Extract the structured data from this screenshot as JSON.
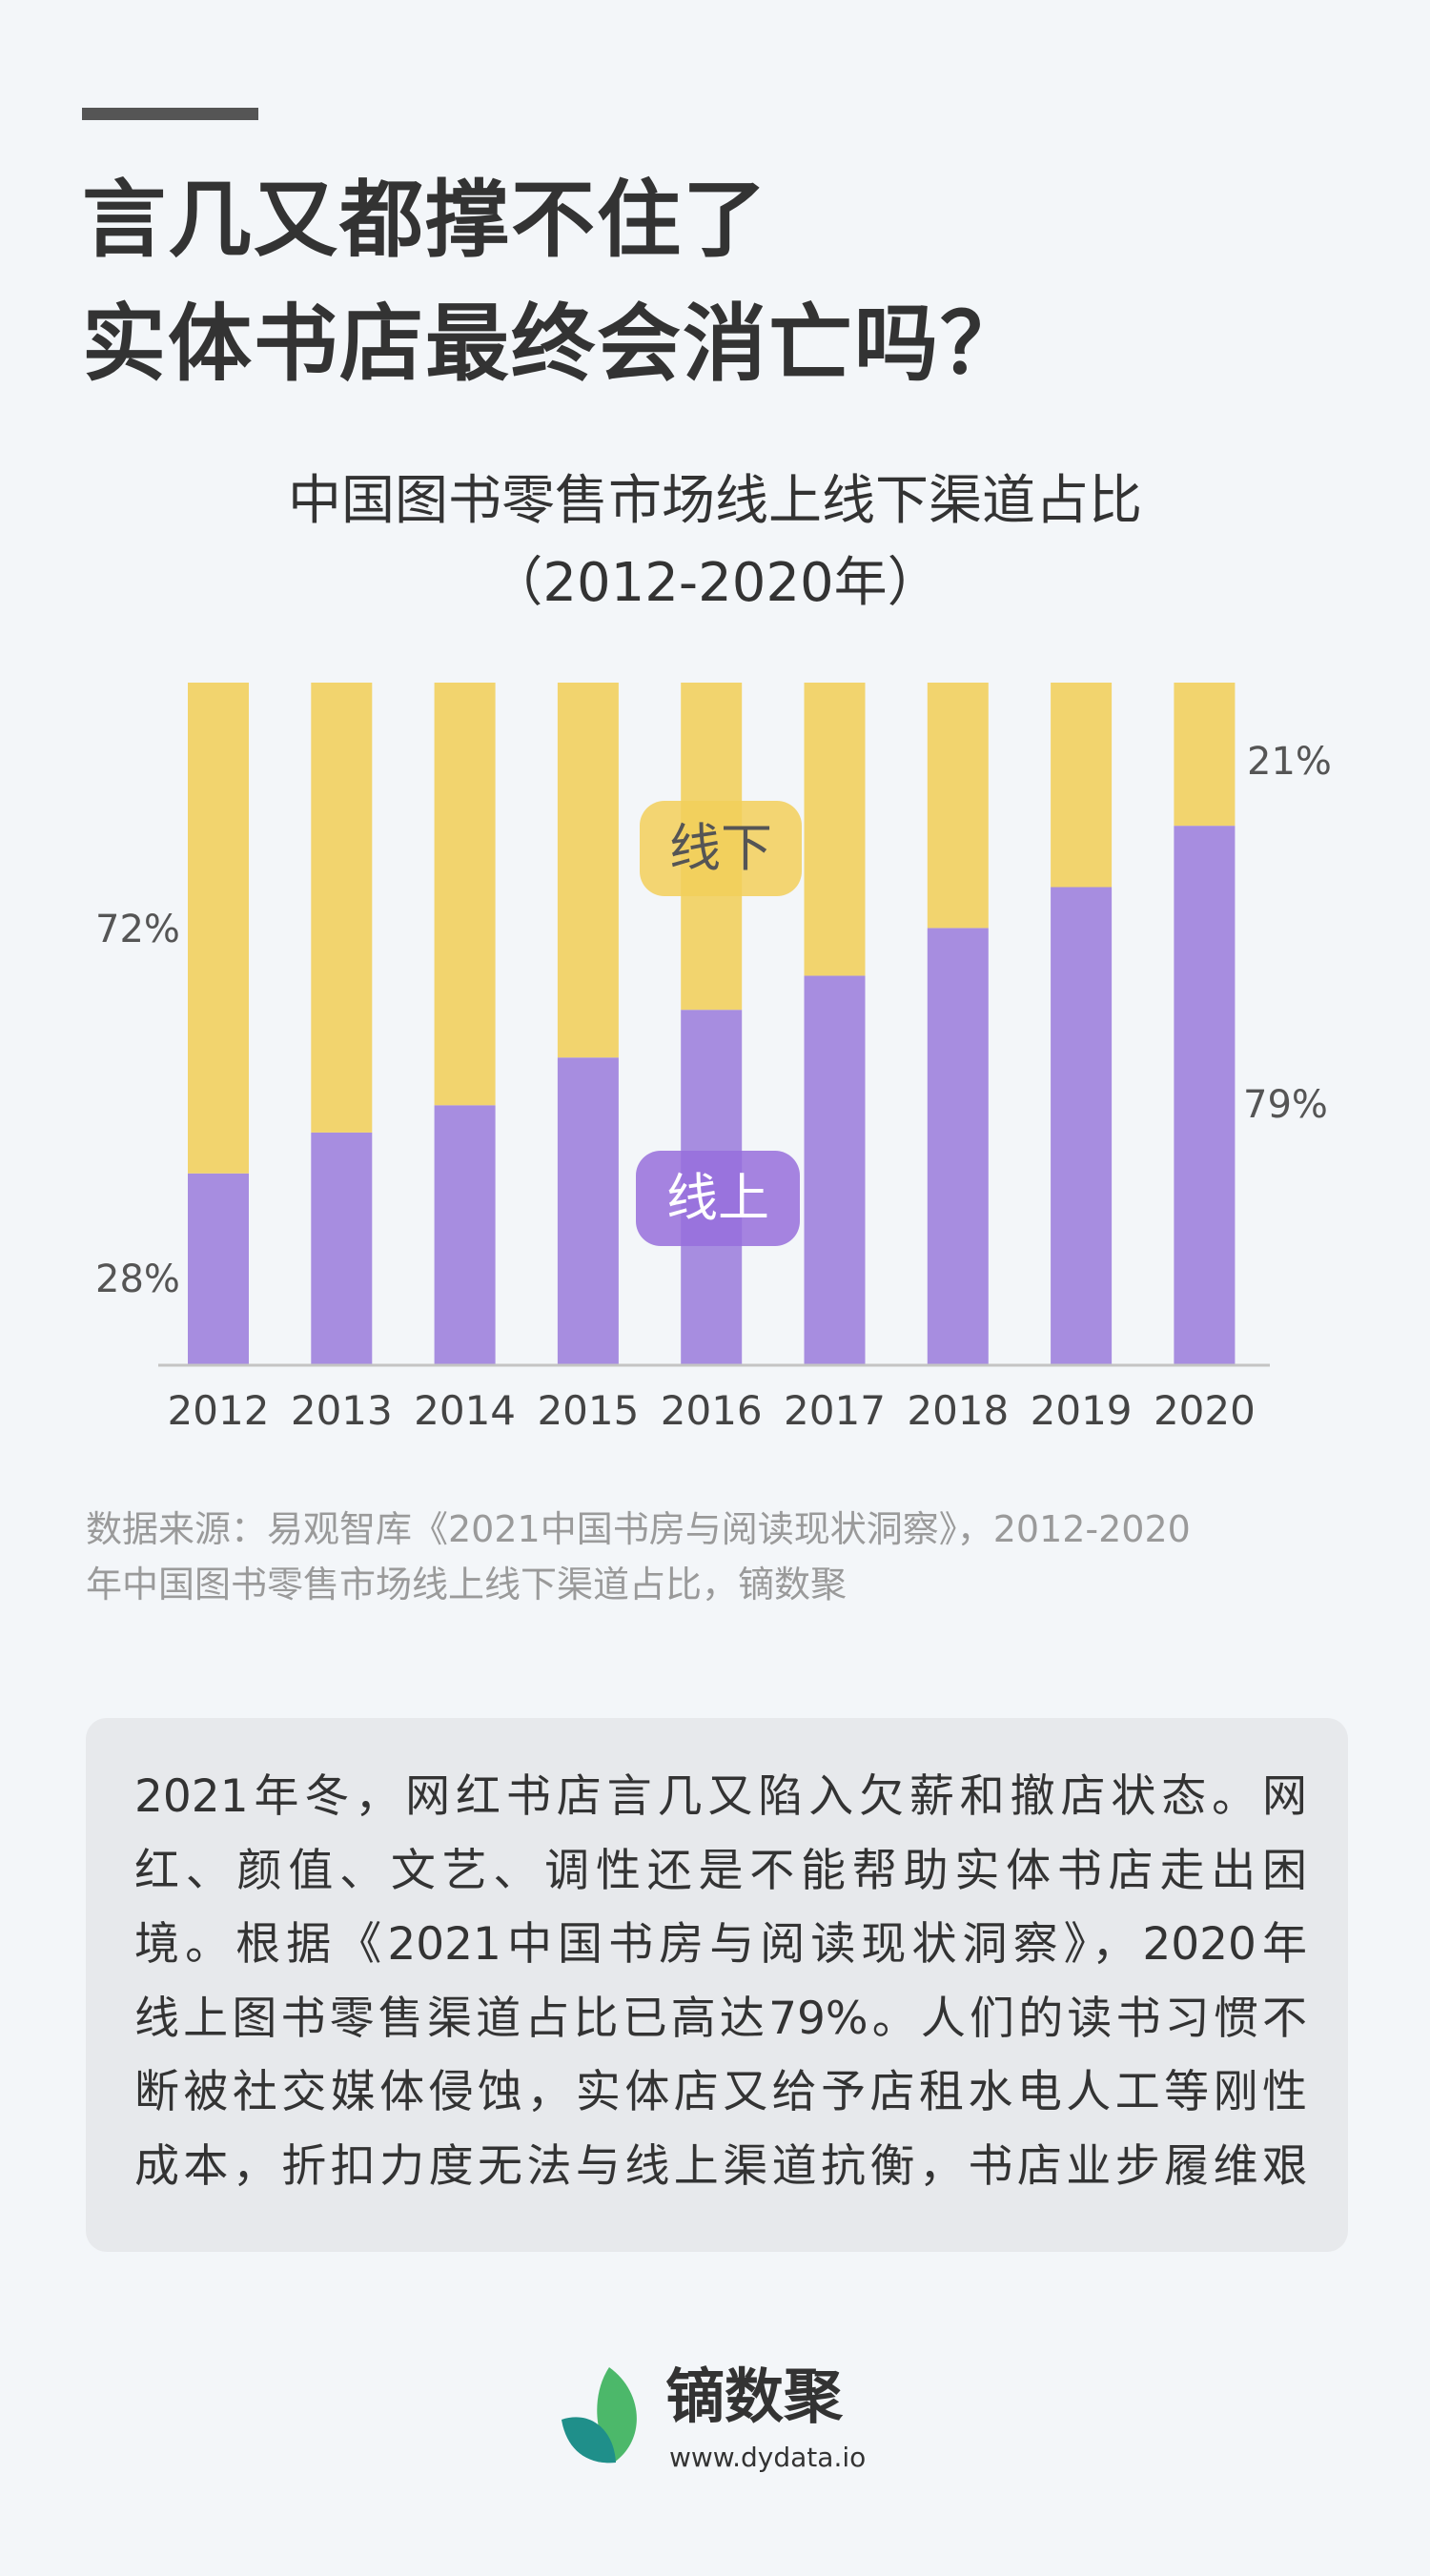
{
  "header": {
    "title_lines": [
      "言几又都撑不住了",
      "实体书店最终会消亡吗？"
    ]
  },
  "chart_data": {
    "type": "bar",
    "stacked": true,
    "title": "中国图书零售市场线上线下渠道占比",
    "subtitle": "（2012-2020年）",
    "categories": [
      "2012",
      "2013",
      "2014",
      "2015",
      "2016",
      "2017",
      "2018",
      "2019",
      "2020"
    ],
    "series": [
      {
        "name": "线上",
        "color": "#a78de0",
        "values": [
          28,
          34,
          38,
          45,
          52,
          57,
          64,
          70,
          79
        ]
      },
      {
        "name": "线下",
        "color": "#f2d46e",
        "values": [
          72,
          66,
          62,
          55,
          48,
          43,
          36,
          30,
          21
        ]
      }
    ],
    "annotations": [
      "72%",
      "28%",
      "21%",
      "79%"
    ],
    "ylim": [
      0,
      100
    ],
    "xlabel": "",
    "ylabel": "",
    "grid": false,
    "legend": [
      "线下",
      "线上"
    ]
  },
  "source": {
    "lines": [
      "数据来源：易观智库《2021中国书房与阅读现状洞察》，2012-2020",
      "年中国图书零售市场线上线下渠道占比，镝数聚"
    ]
  },
  "body": {
    "lines": [
      "2021年冬，网红书店言几又陷入欠薪和撤店状态。网",
      "红、颜值、文艺、调性还是不能帮助实体书店走出困",
      "境。根据《2021中国书房与阅读现状洞察》，2020年",
      "线上图书零售渠道占比已高达79%。人们的读书习惯不",
      "断被社交媒体侵蚀，实体店又给予店租水电人工等刚性",
      "成本，折扣力度无法与线上渠道抗衡，书店业步履维艰"
    ]
  },
  "footer": {
    "brand": "镝数聚",
    "url": "www.dydata.io",
    "logo_icon": "leaf-logo-icon"
  }
}
